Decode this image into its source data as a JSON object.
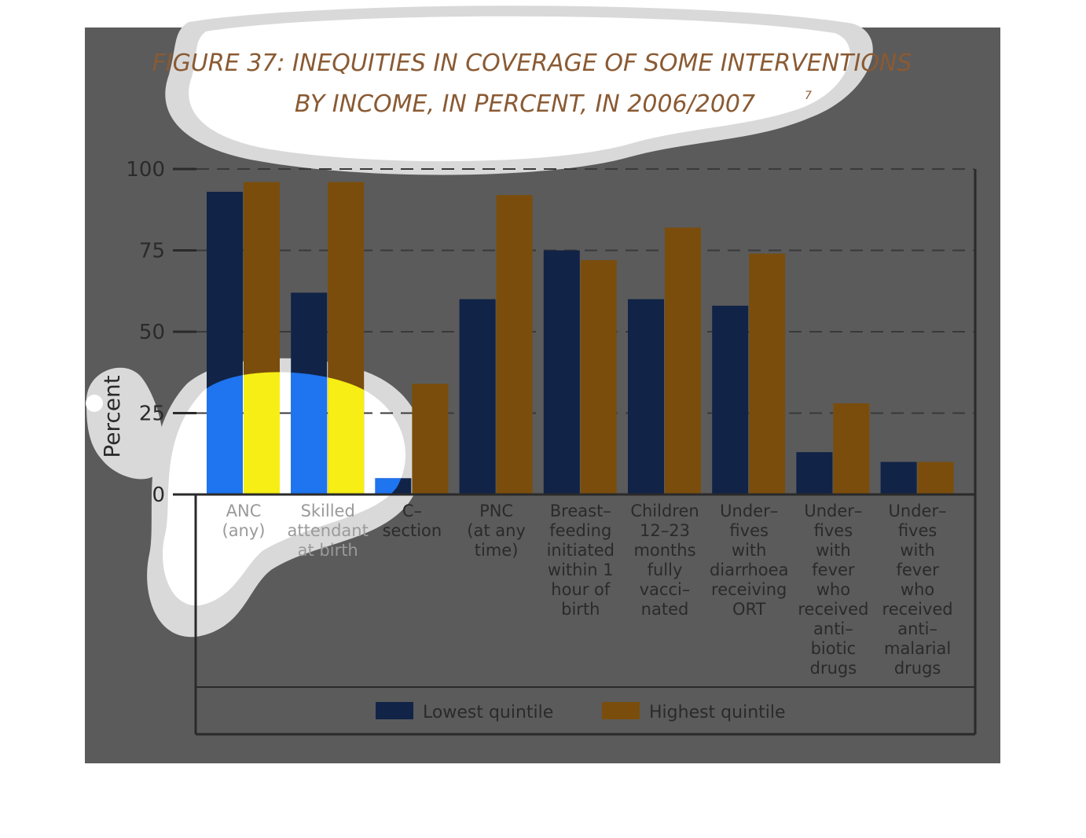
{
  "figure": {
    "title_line1": "FIGURE 37: INEQUITIES IN COVERAGE OF SOME INTERVENTIONS",
    "title_line2": "BY INCOME, IN PERCENT, IN 2006/2007",
    "title_superscript": "7"
  },
  "colors": {
    "panel_bg": "#5b5b5b",
    "lowest": "#112346",
    "highest": "#7a4d0c",
    "title": "#8a5a33",
    "highlight_blue": "#1f74ef",
    "highlight_yellow": "#f6ee14"
  },
  "chart_data": {
    "type": "bar",
    "title": "FIGURE 37: INEQUITIES IN COVERAGE OF SOME INTERVENTIONS BY INCOME, IN PERCENT, IN 2006/2007",
    "ylabel": "Percent",
    "xlabel": "",
    "ylim": [
      0,
      100
    ],
    "yticks": [
      "100",
      "75",
      "50",
      "25",
      "0"
    ],
    "grid": true,
    "legend": "bottom",
    "categories": [
      [
        "ANC",
        "(any)"
      ],
      [
        "Skilled",
        "attendant",
        "at birth"
      ],
      [
        "C–",
        "section"
      ],
      [
        "PNC",
        "(at any",
        "time)"
      ],
      [
        "Breast–",
        "feeding",
        "initiated",
        "within 1",
        "hour of",
        "birth"
      ],
      [
        "Children",
        "12–23",
        "months",
        "fully",
        "vacci–",
        "nated"
      ],
      [
        "Under–",
        "fives",
        "with",
        "diarrhoea",
        "receiving",
        "ORT"
      ],
      [
        "Under–",
        "fives",
        "with",
        "fever",
        "who",
        "received",
        "anti–",
        "biotic",
        "drugs"
      ],
      [
        "Under–",
        "fives",
        "with",
        "fever",
        "who",
        "received",
        "anti–",
        "malarial",
        "drugs"
      ]
    ],
    "series": [
      {
        "name": "Lowest quintile",
        "values": [
          93,
          62,
          5,
          60,
          75,
          60,
          58,
          13,
          10
        ]
      },
      {
        "name": "Highest quintile",
        "values": [
          96,
          96,
          34,
          92,
          72,
          82,
          74,
          28,
          10
        ]
      }
    ]
  }
}
